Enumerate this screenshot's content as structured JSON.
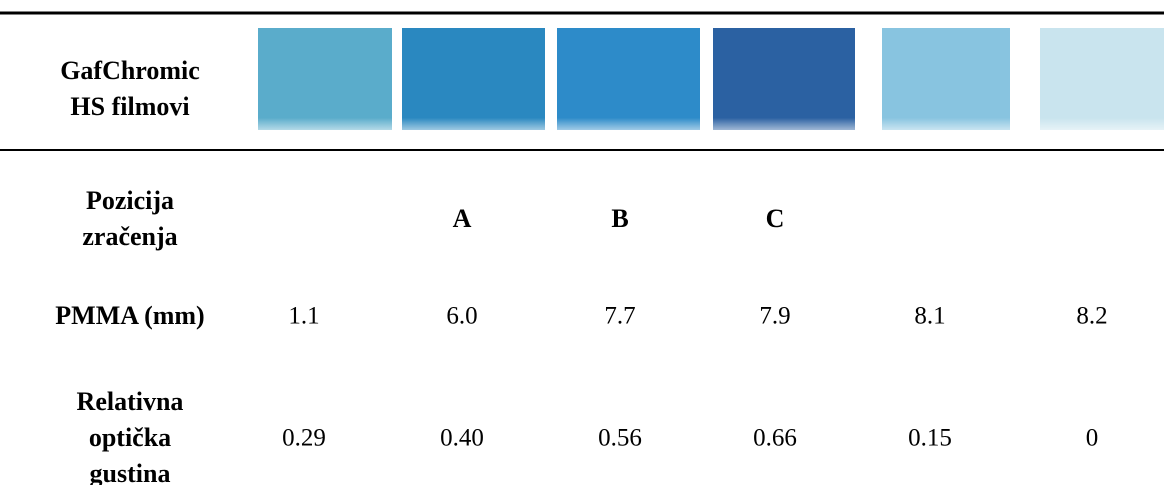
{
  "header": {
    "label": [
      "GafChromic",
      "HS filmovi"
    ]
  },
  "rows": [
    {
      "label": [
        "Pozicija",
        "zračenja"
      ],
      "cells": [
        null,
        "A",
        "B",
        "C",
        null,
        null
      ]
    },
    {
      "label": [
        "PMMA (mm)"
      ],
      "cells": [
        "1.1",
        "6.0",
        "7.7",
        "7.9",
        "8.1",
        "8.2"
      ]
    },
    {
      "label": [
        "Relativna",
        "optička",
        "gustina"
      ],
      "cells": [
        "0.29",
        "0.40",
        "0.56",
        "0.66",
        "0.15",
        "0"
      ]
    }
  ]
}
